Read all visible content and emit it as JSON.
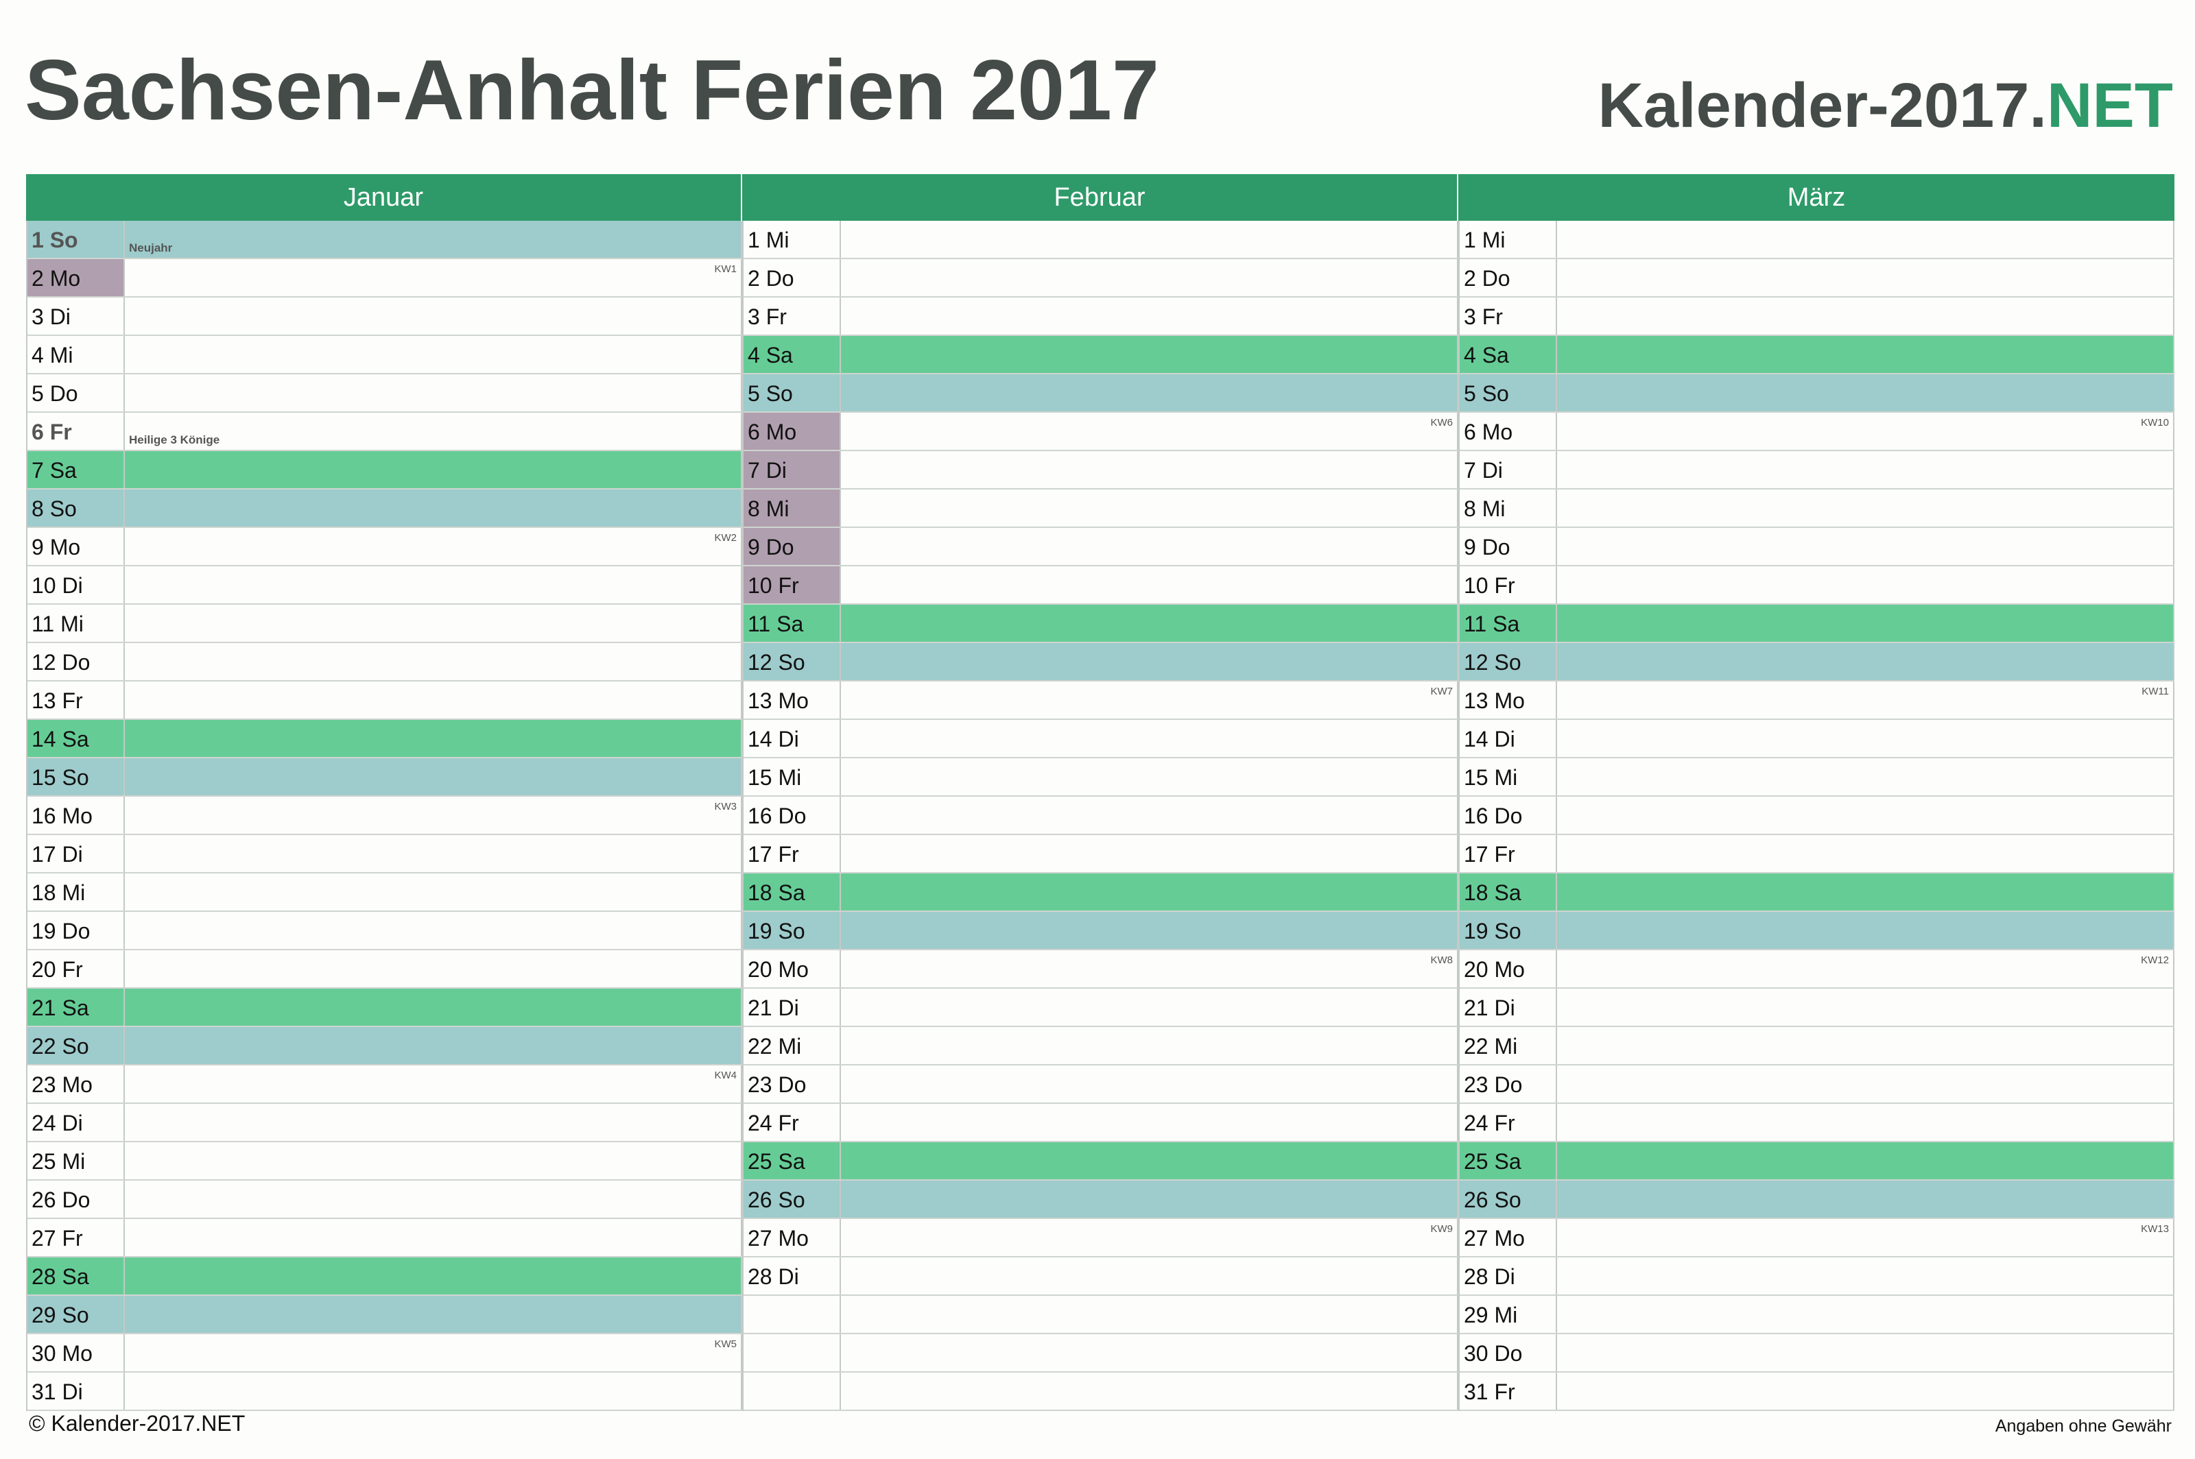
{
  "header": {
    "title": "Sachsen-Anhalt Ferien 2017",
    "brand_main": "Kalender-2017.",
    "brand_accent": "NET"
  },
  "colors": {
    "accent": "#2e9a69",
    "saturday": "#66cc96",
    "sunday": "#9ecbcb",
    "vacation": "#b09fae"
  },
  "months": [
    {
      "name": "Januar",
      "days": [
        {
          "label": "1 So",
          "type": "sun",
          "holiday": "Neujahr"
        },
        {
          "label": "2 Mo",
          "type": "vac",
          "kw": "KW1"
        },
        {
          "label": "3 Di"
        },
        {
          "label": "4 Mi"
        },
        {
          "label": "5 Do"
        },
        {
          "label": "6 Fr",
          "holiday": "Heilige 3 Könige"
        },
        {
          "label": "7 Sa",
          "type": "sat"
        },
        {
          "label": "8 So",
          "type": "sun"
        },
        {
          "label": "9 Mo",
          "kw": "KW2"
        },
        {
          "label": "10 Di"
        },
        {
          "label": "11 Mi"
        },
        {
          "label": "12 Do"
        },
        {
          "label": "13 Fr"
        },
        {
          "label": "14 Sa",
          "type": "sat"
        },
        {
          "label": "15 So",
          "type": "sun"
        },
        {
          "label": "16 Mo",
          "kw": "KW3"
        },
        {
          "label": "17 Di"
        },
        {
          "label": "18 Mi"
        },
        {
          "label": "19 Do"
        },
        {
          "label": "20 Fr"
        },
        {
          "label": "21 Sa",
          "type": "sat"
        },
        {
          "label": "22 So",
          "type": "sun"
        },
        {
          "label": "23 Mo",
          "kw": "KW4"
        },
        {
          "label": "24 Di"
        },
        {
          "label": "25 Mi"
        },
        {
          "label": "26 Do"
        },
        {
          "label": "27 Fr"
        },
        {
          "label": "28 Sa",
          "type": "sat"
        },
        {
          "label": "29 So",
          "type": "sun"
        },
        {
          "label": "30 Mo",
          "kw": "KW5"
        },
        {
          "label": "31 Di"
        }
      ]
    },
    {
      "name": "Februar",
      "days": [
        {
          "label": "1 Mi"
        },
        {
          "label": "2 Do"
        },
        {
          "label": "3 Fr"
        },
        {
          "label": "4 Sa",
          "type": "sat"
        },
        {
          "label": "5 So",
          "type": "sun"
        },
        {
          "label": "6 Mo",
          "type": "vac",
          "kw": "KW6"
        },
        {
          "label": "7 Di",
          "type": "vac"
        },
        {
          "label": "8 Mi",
          "type": "vac"
        },
        {
          "label": "9 Do",
          "type": "vac"
        },
        {
          "label": "10 Fr",
          "type": "vac"
        },
        {
          "label": "11 Sa",
          "type": "sat"
        },
        {
          "label": "12 So",
          "type": "sun"
        },
        {
          "label": "13 Mo",
          "kw": "KW7"
        },
        {
          "label": "14 Di"
        },
        {
          "label": "15 Mi"
        },
        {
          "label": "16 Do"
        },
        {
          "label": "17 Fr"
        },
        {
          "label": "18 Sa",
          "type": "sat"
        },
        {
          "label": "19 So",
          "type": "sun"
        },
        {
          "label": "20 Mo",
          "kw": "KW8"
        },
        {
          "label": "21 Di"
        },
        {
          "label": "22 Mi"
        },
        {
          "label": "23 Do"
        },
        {
          "label": "24 Fr"
        },
        {
          "label": "25 Sa",
          "type": "sat"
        },
        {
          "label": "26 So",
          "type": "sun"
        },
        {
          "label": "27 Mo",
          "kw": "KW9"
        },
        {
          "label": "28 Di"
        },
        {
          "label": "",
          "type": "empty"
        },
        {
          "label": "",
          "type": "empty"
        },
        {
          "label": "",
          "type": "empty"
        }
      ]
    },
    {
      "name": "März",
      "days": [
        {
          "label": "1 Mi"
        },
        {
          "label": "2 Do"
        },
        {
          "label": "3 Fr"
        },
        {
          "label": "4 Sa",
          "type": "sat"
        },
        {
          "label": "5 So",
          "type": "sun"
        },
        {
          "label": "6 Mo",
          "kw": "KW10"
        },
        {
          "label": "7 Di"
        },
        {
          "label": "8 Mi"
        },
        {
          "label": "9 Do"
        },
        {
          "label": "10 Fr"
        },
        {
          "label": "11 Sa",
          "type": "sat"
        },
        {
          "label": "12 So",
          "type": "sun"
        },
        {
          "label": "13 Mo",
          "kw": "KW11"
        },
        {
          "label": "14 Di"
        },
        {
          "label": "15 Mi"
        },
        {
          "label": "16 Do"
        },
        {
          "label": "17 Fr"
        },
        {
          "label": "18 Sa",
          "type": "sat"
        },
        {
          "label": "19 So",
          "type": "sun"
        },
        {
          "label": "20 Mo",
          "kw": "KW12"
        },
        {
          "label": "21 Di"
        },
        {
          "label": "22 Mi"
        },
        {
          "label": "23 Do"
        },
        {
          "label": "24 Fr"
        },
        {
          "label": "25 Sa",
          "type": "sat"
        },
        {
          "label": "26 So",
          "type": "sun"
        },
        {
          "label": "27 Mo",
          "kw": "KW13"
        },
        {
          "label": "28 Di"
        },
        {
          "label": "29 Mi"
        },
        {
          "label": "30 Do"
        },
        {
          "label": "31 Fr"
        }
      ]
    }
  ],
  "footer": {
    "copyright": "© Kalender-2017.NET",
    "disclaimer": "Angaben ohne Gewähr"
  }
}
